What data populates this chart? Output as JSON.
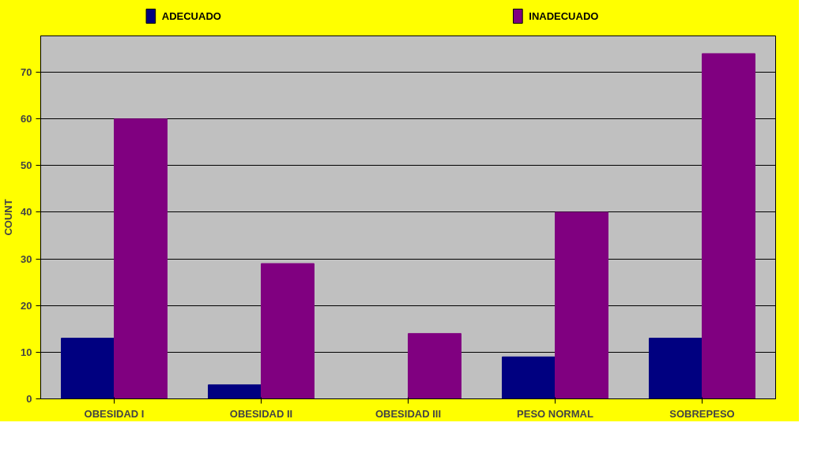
{
  "chart_data": {
    "type": "bar",
    "ylabel": "COUNT",
    "categories": [
      "OBESIDAD I",
      "OBESIDAD II",
      "OBESIDAD III",
      "PESO NORMAL",
      "SOBREPESO"
    ],
    "series": [
      {
        "name": "ADECUADO",
        "color": "#000080",
        "values": [
          13,
          3,
          0,
          9,
          13
        ]
      },
      {
        "name": "INADECUADO",
        "color": "#800080",
        "values": [
          60,
          29,
          14,
          40,
          74
        ]
      }
    ],
    "ylim": [
      0,
      77.8
    ],
    "yticks": [
      0,
      10,
      20,
      30,
      40,
      50,
      60,
      70
    ],
    "grid": "y",
    "legend": "top"
  }
}
